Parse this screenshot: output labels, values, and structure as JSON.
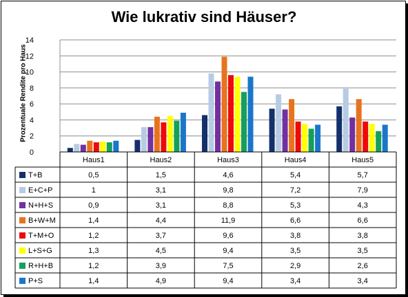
{
  "chart_data": {
    "type": "bar",
    "title": "Wie lukrativ sind Häuser?",
    "ylabel": "Prozentuale Rendite pro Haus",
    "xlabel": "",
    "ylim": [
      0,
      14
    ],
    "yticks": [
      "0",
      "2",
      "4",
      "6",
      "8",
      "10",
      "12",
      "14"
    ],
    "grid": true,
    "legend": "table-below",
    "categories": [
      "Haus1",
      "Haus2",
      "Haus3",
      "Haus4",
      "Haus5"
    ],
    "series": [
      {
        "name": "T+B",
        "color": "#13306b",
        "values": [
          0.5,
          1.5,
          4.6,
          5.4,
          5.7
        ],
        "labels": [
          "0,5",
          "1,5",
          "4,6",
          "5,4",
          "5,7"
        ]
      },
      {
        "name": "E+C+P",
        "color": "#b7cbe4",
        "values": [
          1,
          3.1,
          9.8,
          7.2,
          7.9
        ],
        "labels": [
          "1",
          "3,1",
          "9,8",
          "7,2",
          "7,9"
        ]
      },
      {
        "name": "N+H+S",
        "color": "#7131a0",
        "values": [
          0.9,
          3.1,
          8.8,
          5.3,
          4.3
        ],
        "labels": [
          "0,9",
          "3,1",
          "8,8",
          "5,3",
          "4,3"
        ]
      },
      {
        "name": "B+W+M",
        "color": "#e8731e",
        "values": [
          1.4,
          4.4,
          11.9,
          6.6,
          6.6
        ],
        "labels": [
          "1,4",
          "4,4",
          "11,9",
          "6,6",
          "6,6"
        ]
      },
      {
        "name": "T+M+O",
        "color": "#ee0a0a",
        "values": [
          1.2,
          3.7,
          9.6,
          3.8,
          3.8
        ],
        "labels": [
          "1,2",
          "3,7",
          "9,6",
          "3,8",
          "3,8"
        ]
      },
      {
        "name": "L+S+G",
        "color": "#ffff00",
        "values": [
          1.3,
          4.5,
          9.4,
          3.5,
          3.5
        ],
        "labels": [
          "1,3",
          "4,5",
          "9,4",
          "3,5",
          "3,5"
        ]
      },
      {
        "name": "R+H+B",
        "color": "#14a05a",
        "values": [
          1.2,
          3.9,
          7.5,
          2.9,
          2.6
        ],
        "labels": [
          "1,2",
          "3,9",
          "7,5",
          "2,9",
          "2,6"
        ]
      },
      {
        "name": "P+S",
        "color": "#1b76c9",
        "values": [
          1.4,
          4.9,
          9.4,
          3.4,
          3.4
        ],
        "labels": [
          "1,4",
          "4,9",
          "9,4",
          "3,4",
          "3,4"
        ]
      }
    ]
  }
}
